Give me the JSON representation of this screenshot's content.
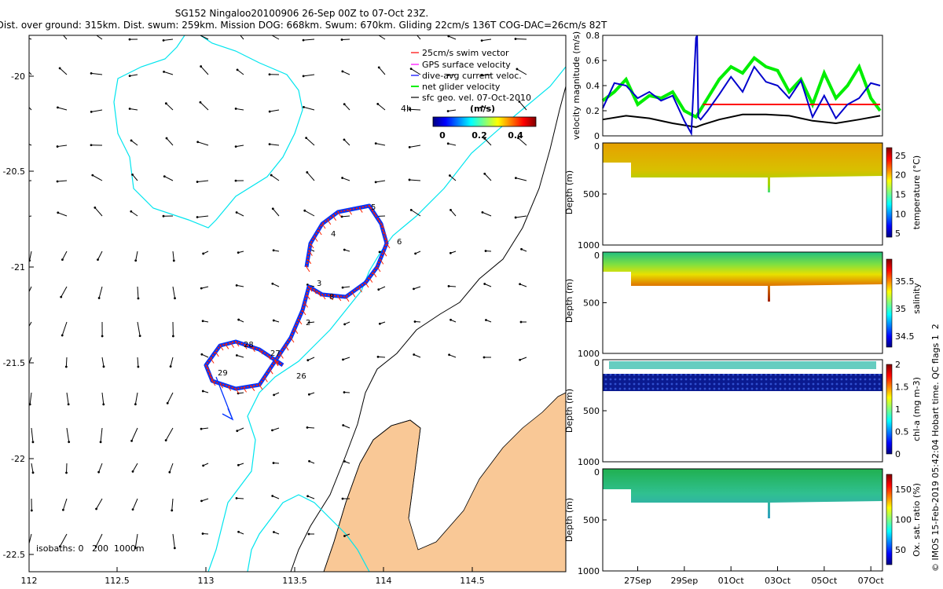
{
  "title": {
    "line1": "SG152 Ningaloo20100906 26-Sep 00Z to 07-Oct 23Z.",
    "line2": "Dist. over ground: 315km. Dist. swum: 259km. Mission DOG: 668km. Swum: 670km. Gliding 22cm/s 136T COG-DAC=26cm/s 82T"
  },
  "map": {
    "xticks": [
      "112",
      "112.5",
      "113",
      "113.5",
      "114",
      "114.5"
    ],
    "yticks": [
      "-20",
      "-20.5",
      "-21",
      "-21.5",
      "-22",
      "-22.5"
    ],
    "legend": [
      {
        "label": "25cm/s swim vector",
        "color": "#ff0000"
      },
      {
        "label": "GPS surface velocity",
        "color": "#ff00ff"
      },
      {
        "label": "dive-avg current veloc.",
        "color": "#0000ff"
      },
      {
        "label": "net glider velocity",
        "color": "#00dd00"
      },
      {
        "label": "sfc geo. vel. 07-Oct-2010",
        "color": "#000000"
      }
    ],
    "scale_label": "4h",
    "colorbar_label": "(m/s)",
    "colorbar_ticks": [
      "0",
      "0.2",
      "0.4"
    ],
    "isobaths": "isobaths: 0   200  1000m",
    "track_labels": [
      "5",
      "4",
      "6",
      "3",
      "8",
      "2",
      "28",
      "27",
      "29",
      "26"
    ],
    "colors": {
      "land": "#f9c896",
      "isobath200": "#00e5ee",
      "track": "#ff2200",
      "current": "#0033ff"
    }
  },
  "chart_data": [
    {
      "type": "line",
      "title": "velocity magnitude",
      "ylabel": "velocity magnitude (m/s)",
      "ylim": [
        0,
        0.8
      ],
      "yticks": [
        "0",
        "0.2",
        "0.4",
        "0.6",
        "0.8"
      ],
      "series": [
        {
          "name": "swim speed",
          "color": "#ff0000",
          "x": [
            4.3,
            11.9
          ],
          "values": [
            0.25,
            0.25
          ]
        },
        {
          "name": "sfc geo",
          "color": "#000000",
          "x": [
            0,
            1,
            2,
            3,
            4,
            4.3,
            5,
            6,
            7,
            8,
            9,
            10,
            11,
            11.9
          ],
          "values": [
            0.13,
            0.16,
            0.14,
            0.1,
            0.07,
            0.09,
            0.13,
            0.17,
            0.17,
            0.16,
            0.12,
            0.1,
            0.13,
            0.16
          ]
        },
        {
          "name": "dive-avg current",
          "color": "#0000cc",
          "x": [
            0,
            0.5,
            1,
            1.5,
            2,
            2.5,
            3,
            3.5,
            3.8,
            4.0,
            4.05,
            4.1,
            4.2,
            4.5,
            5,
            5.5,
            6,
            6.5,
            7,
            7.5,
            8,
            8.5,
            9,
            9.5,
            10,
            10.5,
            11,
            11.5,
            11.9
          ],
          "values": [
            0.22,
            0.42,
            0.4,
            0.3,
            0.35,
            0.28,
            0.32,
            0.12,
            0.02,
            0.78,
            0.8,
            0.15,
            0.13,
            0.2,
            0.33,
            0.47,
            0.35,
            0.55,
            0.43,
            0.4,
            0.3,
            0.44,
            0.15,
            0.32,
            0.14,
            0.25,
            0.3,
            0.42,
            0.4
          ]
        },
        {
          "name": "net glider",
          "color": "#00ee00",
          "x": [
            0,
            0.5,
            1,
            1.5,
            2,
            2.5,
            3,
            3.5,
            4,
            4.5,
            5,
            5.5,
            6,
            6.5,
            7,
            7.5,
            8,
            8.5,
            9,
            9.5,
            10,
            10.5,
            11,
            11.5,
            11.9
          ],
          "values": [
            0.28,
            0.35,
            0.45,
            0.25,
            0.32,
            0.3,
            0.35,
            0.2,
            0.15,
            0.3,
            0.45,
            0.55,
            0.5,
            0.62,
            0.55,
            0.52,
            0.35,
            0.45,
            0.25,
            0.5,
            0.3,
            0.4,
            0.55,
            0.3,
            0.2
          ]
        }
      ]
    },
    {
      "type": "heatmap",
      "title": "temperature",
      "ylabel": "Depth (m)",
      "clabel": "temperature (°C)",
      "ylim": [
        1000,
        0
      ],
      "yticks": [
        "0",
        "500",
        "1000"
      ],
      "cticks": [
        "5",
        "10",
        "15",
        "20",
        "25"
      ],
      "crange": [
        4,
        27
      ]
    },
    {
      "type": "heatmap",
      "title": "salinity",
      "ylabel": "Depth (m)",
      "clabel": "salinity",
      "ylim": [
        1000,
        0
      ],
      "yticks": [
        "0",
        "500",
        "1000"
      ],
      "cticks": [
        "34.5",
        "35",
        "35.5"
      ],
      "crange": [
        34.3,
        35.9
      ]
    },
    {
      "type": "heatmap",
      "title": "chlorophyll",
      "ylabel": "Depth (m)",
      "clabel": "chl-a (mg m-3)",
      "ylim": [
        1000,
        0
      ],
      "yticks": [
        "0",
        "500",
        "1000"
      ],
      "cticks": [
        "0",
        "0.5",
        "1",
        "1.5",
        "2"
      ],
      "crange": [
        0,
        2
      ]
    },
    {
      "type": "heatmap",
      "title": "oxygen",
      "ylabel": "Depth (m)",
      "clabel": "Ox. sat. ratio (%)",
      "ylim": [
        1000,
        0
      ],
      "yticks": [
        "0",
        "500",
        "1000"
      ],
      "cticks": [
        "50",
        "100",
        "150"
      ],
      "crange": [
        25,
        175
      ]
    }
  ],
  "time_axis": {
    "ticks": [
      "27Sep",
      "29Sep",
      "01Oct",
      "03Oct",
      "05Oct",
      "07Oct"
    ]
  },
  "credit": "© IMOS 15-Feb-2019 05:42:04 Hobart time. QC flags 1  2"
}
